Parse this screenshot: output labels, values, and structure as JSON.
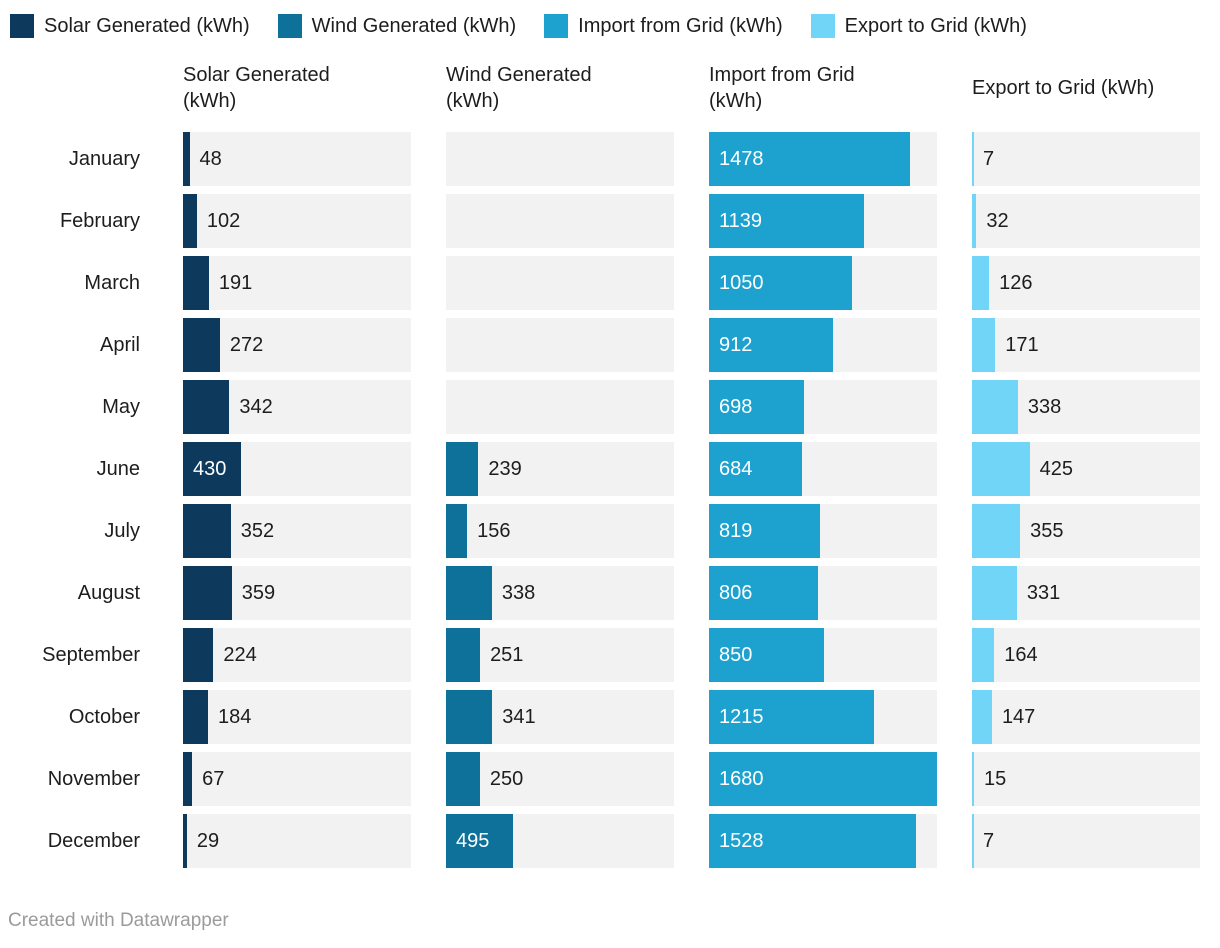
{
  "chart_data": {
    "type": "bar",
    "orientation": "horizontal",
    "legend_position": "top",
    "grid": false,
    "track_color": "#f2f2f2",
    "xmax": 1680,
    "categories": [
      "January",
      "February",
      "March",
      "April",
      "May",
      "June",
      "July",
      "August",
      "September",
      "October",
      "November",
      "December"
    ],
    "series": [
      {
        "name": "Solar Generated (kWh)",
        "color": "#0d3a5c",
        "values": [
          48,
          102,
          191,
          272,
          342,
          430,
          352,
          359,
          224,
          184,
          67,
          29
        ],
        "label_inside": [
          false,
          false,
          false,
          false,
          false,
          true,
          false,
          false,
          false,
          false,
          false,
          false
        ]
      },
      {
        "name": "Wind Generated (kWh)",
        "color": "#0e7199",
        "values": [
          null,
          null,
          null,
          null,
          null,
          239,
          156,
          338,
          251,
          341,
          250,
          495
        ],
        "label_inside": [
          false,
          false,
          false,
          false,
          false,
          false,
          false,
          false,
          false,
          false,
          false,
          true
        ]
      },
      {
        "name": "Import from Grid (kWh)",
        "color": "#1da2cf",
        "values": [
          1478,
          1139,
          1050,
          912,
          698,
          684,
          819,
          806,
          850,
          1215,
          1680,
          1528
        ],
        "label_inside": [
          true,
          true,
          true,
          true,
          true,
          true,
          true,
          true,
          true,
          true,
          true,
          true
        ]
      },
      {
        "name": "Export to Grid (kWh)",
        "color": "#70d5f7",
        "values": [
          7,
          32,
          126,
          171,
          338,
          425,
          355,
          331,
          164,
          147,
          15,
          7
        ],
        "label_inside": [
          false,
          false,
          false,
          false,
          false,
          false,
          false,
          false,
          false,
          false,
          false,
          false
        ]
      }
    ]
  },
  "footer": {
    "credit": "Created with Datawrapper"
  }
}
